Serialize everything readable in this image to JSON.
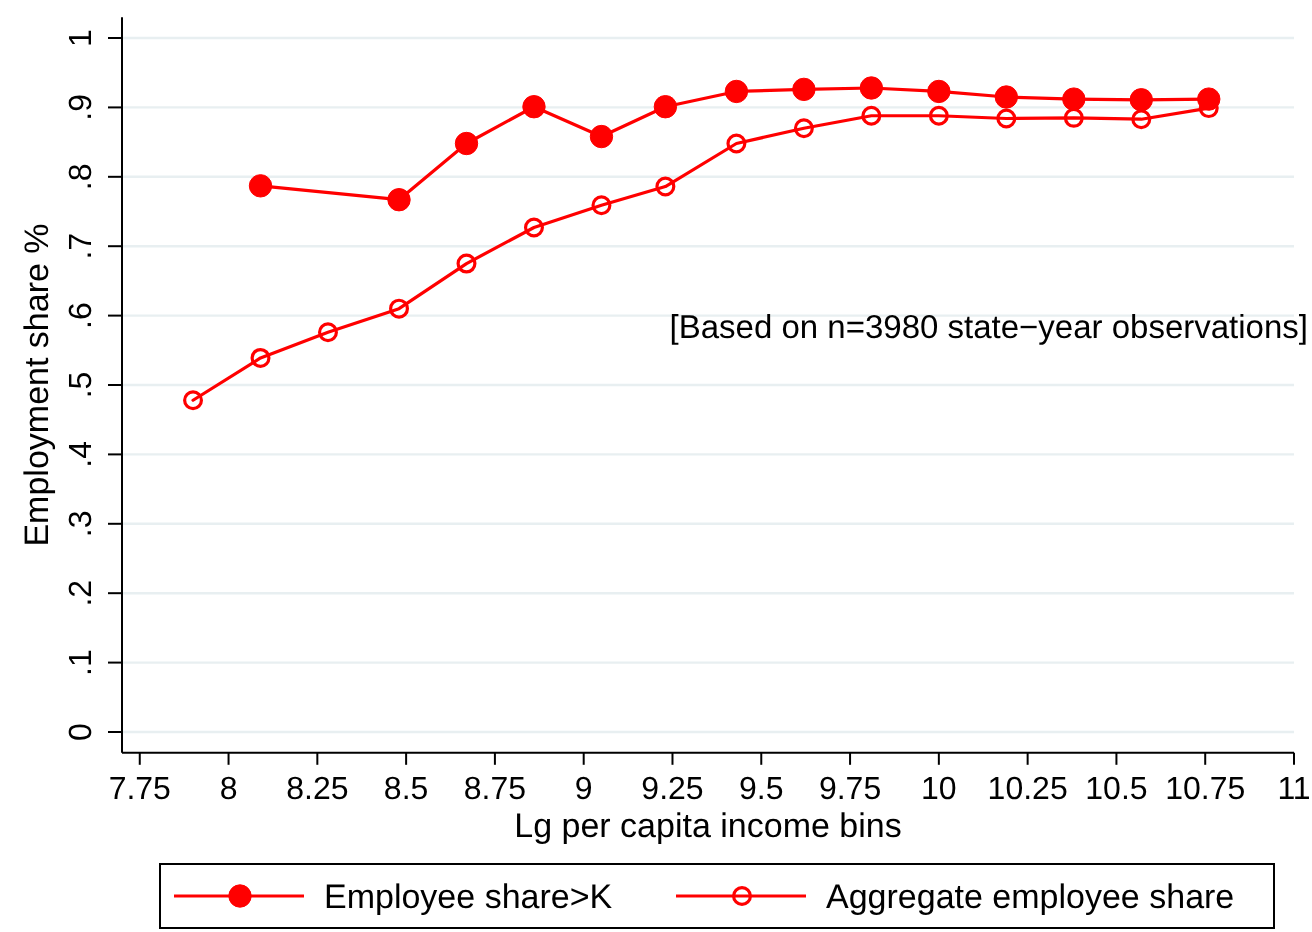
{
  "chart_data": {
    "type": "line",
    "xlabel": "Lg per capita income bins",
    "ylabel": "Employment share %",
    "annotations": [
      "[Based on n=3980 state−year observations]"
    ],
    "xlim": [
      7.7,
      11
    ],
    "xticks": [
      7.75,
      8,
      8.25,
      8.5,
      8.75,
      9,
      9.25,
      9.5,
      9.75,
      10,
      10.25,
      10.5,
      10.75,
      11
    ],
    "ylim": [
      -0.03,
      1.03
    ],
    "yticks": [
      0,
      {
        "value": 0.1,
        "label": ".1"
      },
      {
        "value": 0.2,
        "label": ".2"
      },
      {
        "value": 0.3,
        "label": ".3"
      },
      {
        "value": 0.4,
        "label": ".4"
      },
      {
        "value": 0.5,
        "label": ".5"
      },
      {
        "value": 0.6,
        "label": ".6"
      },
      {
        "value": 0.7,
        "label": ".7"
      },
      {
        "value": 0.8,
        "label": ".8"
      },
      {
        "value": 0.9,
        "label": ".9"
      },
      1
    ],
    "grid": "y",
    "legend": "bottom",
    "marker": "circle",
    "line_style": "solid",
    "series": [
      {
        "name": "Employee share>K",
        "color": "#ff0000",
        "x": [
          8.09,
          8.48,
          8.67,
          8.86,
          9.05,
          9.23,
          9.43,
          9.62,
          9.81,
          10.0,
          10.19,
          10.38,
          10.57,
          10.76
        ],
        "values": [
          0.787,
          0.767,
          0.848,
          0.901,
          0.858,
          0.901,
          0.923,
          0.926,
          0.928,
          0.923,
          0.915,
          0.912,
          0.911,
          0.912
        ]
      },
      {
        "name": "Aggregate employee share",
        "color": "#ff0000",
        "marker": "circle-open",
        "x": [
          7.9,
          8.09,
          8.28,
          8.48,
          8.67,
          8.86,
          9.05,
          9.23,
          9.43,
          9.62,
          9.81,
          10.0,
          10.19,
          10.38,
          10.57,
          10.76
        ],
        "values": [
          0.478,
          0.539,
          0.576,
          0.61,
          0.675,
          0.727,
          0.759,
          0.786,
          0.848,
          0.87,
          0.888,
          0.888,
          0.884,
          0.885,
          0.883,
          0.899
        ]
      }
    ]
  }
}
